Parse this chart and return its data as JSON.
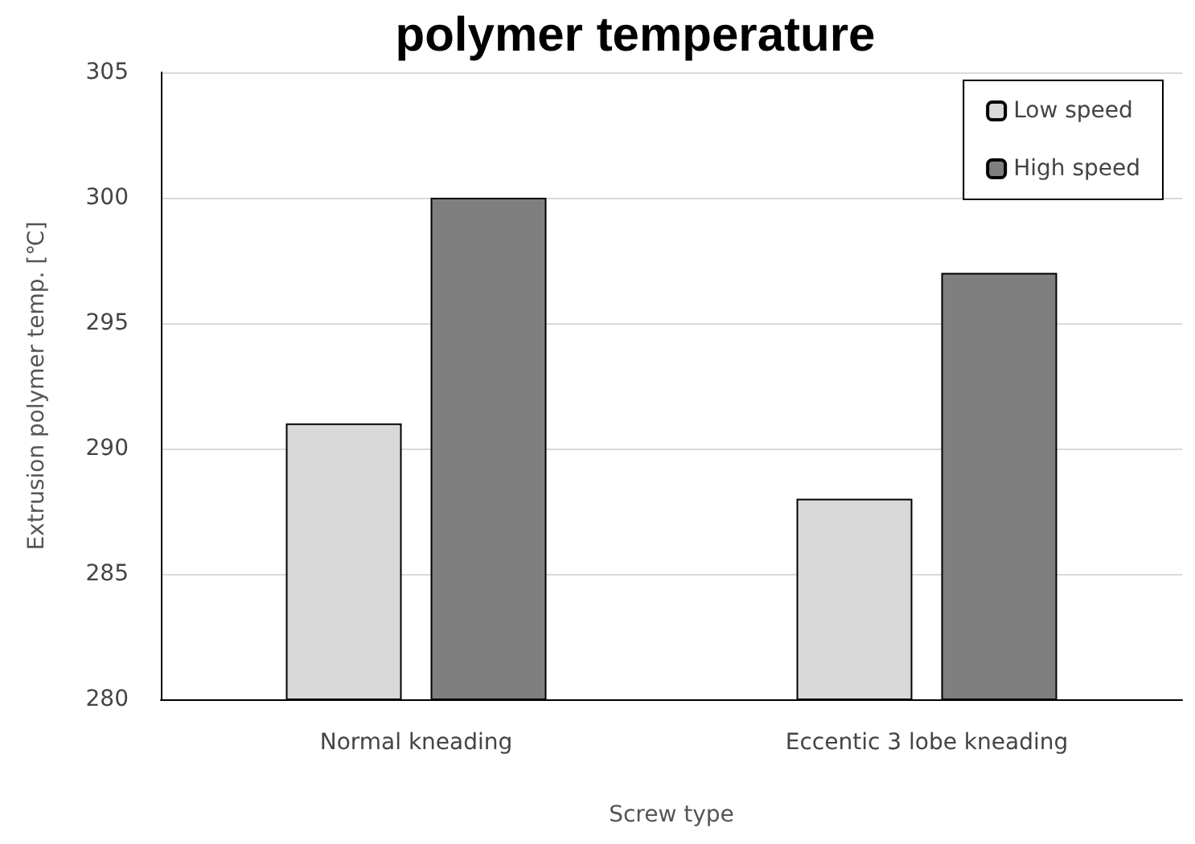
{
  "chart_data": {
    "type": "bar",
    "title": "polymer temperature",
    "xlabel": "Screw type",
    "ylabel": "Extrusion polymer temp. [℃]",
    "categories": [
      "Normal kneading",
      "Eccentic 3 lobe kneading"
    ],
    "series": [
      {
        "name": "Low speed",
        "color": "#d9d9d9",
        "values": [
          291,
          288
        ]
      },
      {
        "name": "High speed",
        "color": "#7f7f7f",
        "values": [
          300,
          297
        ]
      }
    ],
    "ylim": [
      280,
      305
    ],
    "yticks": [
      280,
      285,
      290,
      295,
      300,
      305
    ],
    "grid": "y",
    "legend": "top right"
  }
}
